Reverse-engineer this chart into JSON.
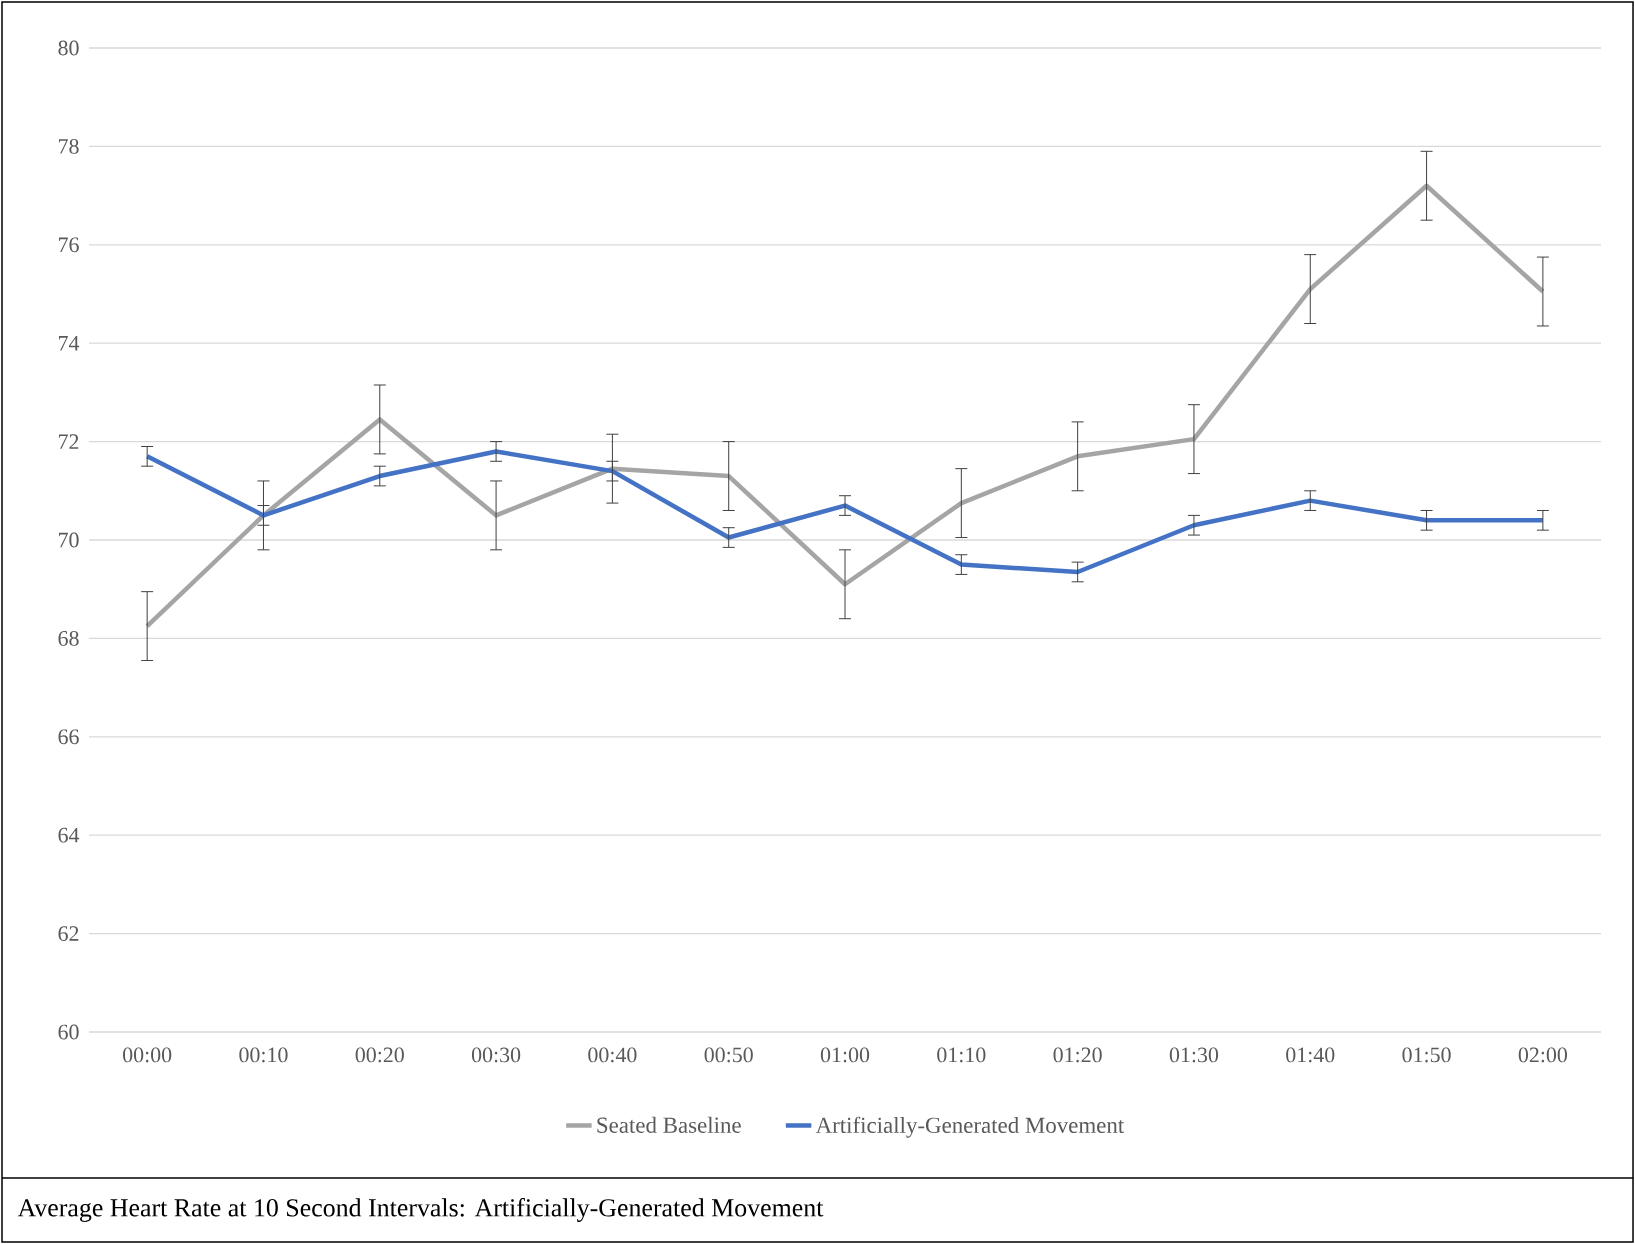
{
  "chart_data": {
    "type": "line",
    "title": "Average Heart Rate at 10 Second Intervals: Artificially-Generated Movement",
    "categories": [
      "00:00",
      "00:10",
      "00:20",
      "00:30",
      "00:40",
      "00:50",
      "01:00",
      "01:10",
      "01:20",
      "01:30",
      "01:40",
      "01:50",
      "02:00"
    ],
    "series": [
      {
        "name": "Seated Baseline",
        "color": "#a5a5a5",
        "values": [
          68.25,
          70.5,
          72.45,
          70.5,
          71.45,
          71.3,
          69.1,
          70.75,
          71.7,
          72.05,
          75.1,
          77.2,
          75.05
        ],
        "errors": [
          0.7,
          0.7,
          0.7,
          0.7,
          0.7,
          0.7,
          0.7,
          0.7,
          0.7,
          0.7,
          0.7,
          0.7,
          0.7
        ]
      },
      {
        "name": "Artificially-Generated Movement",
        "color": "#4472c4",
        "values": [
          71.7,
          70.5,
          71.3,
          71.8,
          71.4,
          70.05,
          70.7,
          69.5,
          69.35,
          70.3,
          70.8,
          70.4,
          70.4
        ],
        "errors": [
          0.2,
          0.2,
          0.2,
          0.2,
          0.2,
          0.2,
          0.2,
          0.2,
          0.2,
          0.2,
          0.2,
          0.2,
          0.2
        ]
      }
    ],
    "ylim": [
      60,
      80
    ],
    "yticks": [
      60,
      62,
      64,
      66,
      68,
      70,
      72,
      74,
      76,
      78,
      80
    ],
    "grid": "y",
    "legend": "bottom",
    "marker": "none",
    "line_style": "solid"
  }
}
